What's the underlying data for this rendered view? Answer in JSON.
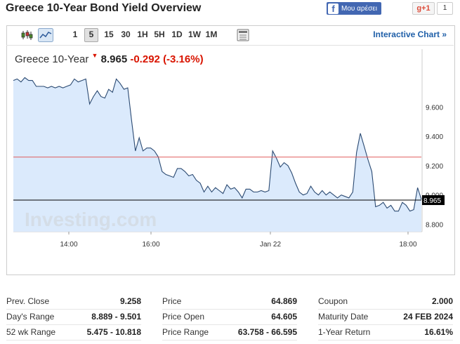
{
  "header": {
    "title": "Greece 10-Year Bond Yield Overview",
    "fb_label": "Μου αρέσει",
    "gplus_label": "g+1",
    "gplus_count": "1"
  },
  "toolbar": {
    "timeframes": [
      "1",
      "5",
      "15",
      "30",
      "1H",
      "5H",
      "1D",
      "1W",
      "1M"
    ],
    "active_timeframe": "5",
    "interactive_label": "Interactive Chart »"
  },
  "quote": {
    "name": "Greece 10-Year",
    "price": "8.965",
    "change": "-0.292",
    "change_pct": "(-3.16%)",
    "arrow": "▼",
    "down_color": "#d91400"
  },
  "chart_data": {
    "type": "area",
    "x_ticks": [
      "14:00",
      "16:00",
      "Jan 22",
      "18:00"
    ],
    "y_ticks": [
      "9.600",
      "9.400",
      "9.200",
      "9.000",
      "8.800"
    ],
    "ylim": [
      8.75,
      9.85
    ],
    "prev_close_line": 9.258,
    "last_price_label": "8.965",
    "last_price": 8.965,
    "values": [
      9.78,
      9.79,
      9.77,
      9.8,
      9.78,
      9.78,
      9.74,
      9.74,
      9.74,
      9.73,
      9.74,
      9.73,
      9.74,
      9.73,
      9.74,
      9.75,
      9.79,
      9.77,
      9.78,
      9.79,
      9.62,
      9.67,
      9.71,
      9.67,
      9.66,
      9.72,
      9.7,
      9.79,
      9.76,
      9.72,
      9.73,
      9.51,
      9.3,
      9.39,
      9.3,
      9.32,
      9.32,
      9.3,
      9.26,
      9.16,
      9.14,
      9.13,
      9.12,
      9.18,
      9.18,
      9.16,
      9.13,
      9.14,
      9.1,
      9.08,
      9.02,
      9.06,
      9.02,
      9.05,
      9.03,
      9.01,
      9.07,
      9.04,
      9.05,
      9.02,
      8.98,
      9.04,
      9.04,
      9.02,
      9.02,
      9.03,
      9.02,
      9.03,
      9.3,
      9.25,
      9.19,
      9.22,
      9.2,
      9.15,
      9.08,
      9.02,
      9.0,
      9.01,
      9.06,
      9.02,
      9.0,
      9.03,
      9.0,
      9.02,
      9.0,
      8.98,
      9.0,
      8.99,
      8.98,
      9.02,
      9.29,
      9.42,
      9.33,
      9.24,
      9.16,
      8.92,
      8.93,
      8.95,
      8.91,
      8.93,
      8.89,
      8.89,
      8.95,
      8.93,
      8.89,
      8.9,
      9.05,
      8.97
    ]
  },
  "watermark": "Investing.com",
  "stats": {
    "col1": [
      {
        "label": "Prev. Close",
        "value": "9.258"
      },
      {
        "label": "Day's Range",
        "value": "8.889 - 9.501"
      },
      {
        "label": "52 wk Range",
        "value": "5.475 - 10.818"
      }
    ],
    "col2": [
      {
        "label": "Price",
        "value": "64.869"
      },
      {
        "label": "Price Open",
        "value": "64.605"
      },
      {
        "label": "Price Range",
        "value": "63.758 - 66.595"
      }
    ],
    "col3": [
      {
        "label": "Coupon",
        "value": "2.000"
      },
      {
        "label": "Maturity Date",
        "value": "24 FEB 2024"
      },
      {
        "label": "1-Year Return",
        "value": "16.61%"
      }
    ]
  }
}
